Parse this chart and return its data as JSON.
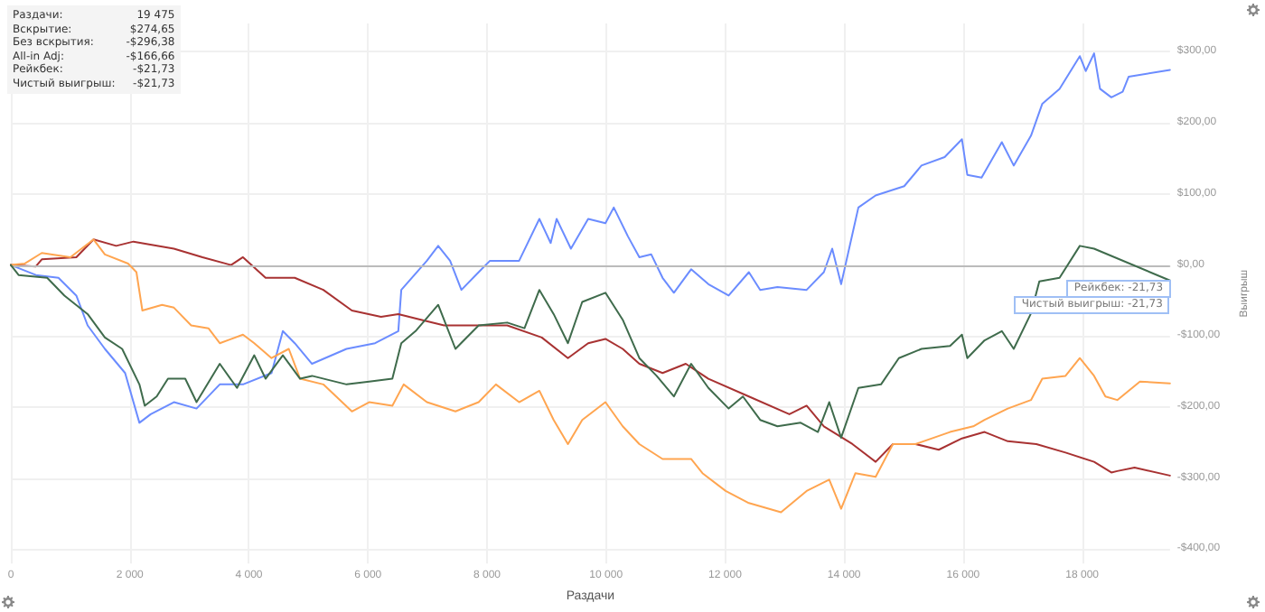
{
  "chart_data": {
    "type": "line",
    "xlabel": "Раздачи",
    "ylabel": "Выигрыш",
    "xlim": [
      0,
      19475
    ],
    "ylim": [
      -420,
      340
    ],
    "xticks": [
      {
        "value": 0,
        "label": "0"
      },
      {
        "value": 2000,
        "label": "2 000"
      },
      {
        "value": 4000,
        "label": "4 000"
      },
      {
        "value": 6000,
        "label": "6 000"
      },
      {
        "value": 8000,
        "label": "8 000"
      },
      {
        "value": 10000,
        "label": "10 000"
      },
      {
        "value": 12000,
        "label": "12 000"
      },
      {
        "value": 14000,
        "label": "14 000"
      },
      {
        "value": 16000,
        "label": "16 000"
      },
      {
        "value": 18000,
        "label": "18 000"
      }
    ],
    "yticks": [
      {
        "value": -400,
        "label": "-$400,00"
      },
      {
        "value": -300,
        "label": "-$300,00"
      },
      {
        "value": -200,
        "label": "-$200,00"
      },
      {
        "value": -100,
        "label": "-$100,00"
      },
      {
        "value": 0,
        "label": "$0,00"
      },
      {
        "value": 100,
        "label": "$100,00"
      },
      {
        "value": 200,
        "label": "$200,00"
      },
      {
        "value": 300,
        "label": "$300,00"
      }
    ],
    "grid": true,
    "line_style": "solid",
    "ref_lines": [
      {
        "axis": "y",
        "value": 0,
        "color": "#bbbbbb"
      }
    ],
    "annotations": [
      "Раздачи:",
      "19 475",
      "Вскрытие:",
      "$274,65",
      "Без вскрытия:",
      "-$296,38",
      "All-in Adj:",
      "-$166,66",
      "Рейкбек:",
      "-$21,73",
      "Чистый выигрыш:",
      "-$21,73",
      {
        "text": "Рейкбек: -21,73",
        "x": 19475,
        "y": -21.73
      },
      {
        "text": "Чистый выигрыш: -21,73",
        "x": 19475,
        "y": -21.73
      }
    ],
    "series": [
      {
        "color": "#6b8cff",
        "x": [
          0,
          420,
          800,
          1100,
          1290,
          1580,
          1920,
          2160,
          2350,
          2740,
          3120,
          3510,
          3900,
          4380,
          4570,
          4770,
          5060,
          5640,
          6120,
          6510,
          6560,
          6990,
          7180,
          7380,
          7570,
          7860,
          8050,
          8540,
          8880,
          9070,
          9170,
          9410,
          9700,
          9990,
          10130,
          10370,
          10560,
          10760,
          10950,
          11140,
          11430,
          11720,
          12060,
          12400,
          12590,
          12880,
          13370,
          13660,
          13800,
          13950,
          14240,
          14530,
          15010,
          15300,
          15690,
          15980,
          16070,
          16310,
          16650,
          16850,
          17140,
          17330,
          17620,
          17960,
          18060,
          18200,
          18300,
          18490,
          18680,
          18780,
          19475
        ],
        "values": [
          0,
          -14,
          -18,
          -43,
          -85,
          -118,
          -152,
          -222,
          -210,
          -193,
          -202,
          -168,
          -168,
          -152,
          -93,
          -110,
          -139,
          -118,
          -110,
          -93,
          -35,
          6,
          27,
          6,
          -35,
          -10,
          6,
          6,
          65,
          31,
          65,
          23,
          65,
          59,
          81,
          40,
          11,
          15,
          -18,
          -39,
          -6,
          -27,
          -43,
          -10,
          -35,
          -31,
          -35,
          -10,
          23,
          -27,
          81,
          98,
          111,
          140,
          152,
          177,
          127,
          123,
          173,
          140,
          182,
          227,
          248,
          294,
          273,
          298,
          248,
          236,
          244,
          265,
          274.65
        ]
      },
      {
        "color": "#a83232",
        "x": [
          0,
          420,
          520,
          1100,
          1390,
          1770,
          2060,
          2740,
          3220,
          3700,
          3900,
          4280,
          4770,
          5250,
          5730,
          6220,
          6510,
          6890,
          7280,
          7760,
          8340,
          8920,
          9360,
          9700,
          9990,
          10280,
          10560,
          10950,
          11340,
          11720,
          12400,
          13080,
          13370,
          13660,
          14140,
          14530,
          14820,
          15200,
          15590,
          15980,
          16360,
          16750,
          17230,
          17720,
          18200,
          18490,
          18590,
          18880,
          19475
        ],
        "values": [
          0,
          -2,
          8,
          11,
          36,
          27,
          33,
          23,
          11,
          0,
          11,
          -18,
          -18,
          -35,
          -64,
          -73,
          -69,
          -77,
          -85,
          -85,
          -85,
          -102,
          -131,
          -110,
          -104,
          -118,
          -139,
          -152,
          -139,
          -160,
          -185,
          -210,
          -198,
          -227,
          -252,
          -277,
          -252,
          -252,
          -260,
          -244,
          -235,
          -248,
          -252,
          -264,
          -277,
          -292,
          -290,
          -285,
          -296.38
        ]
      },
      {
        "color": "#ffa550",
        "x": [
          0,
          230,
          520,
          1000,
          1390,
          1580,
          1970,
          2110,
          2210,
          2540,
          2740,
          3030,
          3320,
          3510,
          3900,
          4090,
          4380,
          4670,
          4860,
          5250,
          5730,
          6020,
          6410,
          6600,
          6990,
          7470,
          7860,
          8150,
          8540,
          8880,
          9120,
          9360,
          9600,
          9990,
          10280,
          10560,
          10950,
          11430,
          11620,
          12010,
          12400,
          12940,
          13370,
          13750,
          13950,
          14190,
          14530,
          14820,
          15200,
          15780,
          16170,
          16360,
          16750,
          17140,
          17330,
          17720,
          17960,
          18200,
          18390,
          18590,
          18970,
          19475
        ],
        "values": [
          0,
          2,
          17,
          11,
          36,
          15,
          2,
          -10,
          -64,
          -56,
          -60,
          -85,
          -89,
          -110,
          -98,
          -110,
          -131,
          -118,
          -160,
          -168,
          -206,
          -193,
          -198,
          -168,
          -193,
          -206,
          -193,
          -168,
          -193,
          -177,
          -218,
          -252,
          -218,
          -193,
          -227,
          -252,
          -273,
          -273,
          -293,
          -318,
          -335,
          -348,
          -318,
          -302,
          -343,
          -293,
          -298,
          -252,
          -252,
          -235,
          -227,
          -218,
          -202,
          -190,
          -160,
          -156,
          -131,
          -156,
          -185,
          -190,
          -164,
          -166.66
        ]
      },
      {
        "color": "#3f6b4c",
        "x": [
          0,
          130,
          610,
          900,
          1290,
          1580,
          1870,
          2160,
          2250,
          2450,
          2640,
          2930,
          3120,
          3510,
          3800,
          4090,
          4280,
          4570,
          4860,
          5060,
          5640,
          6020,
          6410,
          6560,
          6800,
          7180,
          7470,
          7860,
          8340,
          8630,
          8880,
          9120,
          9360,
          9600,
          9990,
          10280,
          10560,
          10850,
          11140,
          11430,
          11720,
          12060,
          12300,
          12590,
          12880,
          13270,
          13560,
          13750,
          13950,
          14240,
          14620,
          14920,
          15300,
          15780,
          15980,
          16070,
          16360,
          16650,
          16850,
          17140,
          17280,
          17620,
          17960,
          18200,
          19475
        ],
        "values": [
          0,
          -14,
          -18,
          -43,
          -69,
          -102,
          -118,
          -168,
          -198,
          -185,
          -160,
          -160,
          -193,
          -139,
          -173,
          -127,
          -160,
          -127,
          -160,
          -156,
          -168,
          -164,
          -160,
          -110,
          -93,
          -56,
          -118,
          -85,
          -81,
          -89,
          -35,
          -69,
          -110,
          -52,
          -39,
          -77,
          -131,
          -156,
          -185,
          -139,
          -173,
          -202,
          -185,
          -218,
          -227,
          -222,
          -235,
          -193,
          -243,
          -173,
          -168,
          -131,
          -118,
          -114,
          -98,
          -131,
          -106,
          -93,
          -118,
          -68,
          -23,
          -18,
          27,
          23,
          -21.73
        ]
      }
    ]
  }
}
